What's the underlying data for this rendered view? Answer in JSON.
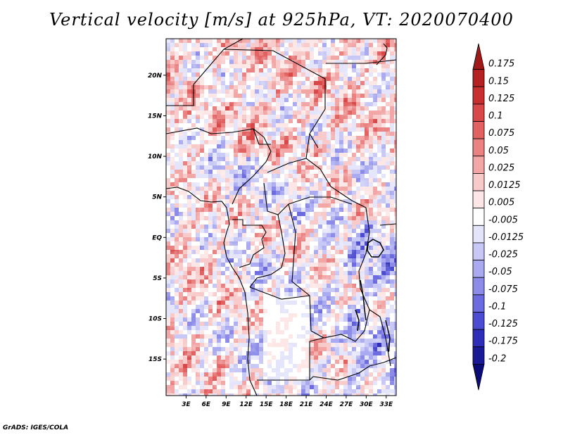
{
  "title": "Vertical velocity [m/s] at 925hPa, VT: 2020070400",
  "footer": "GrADS: IGES/COLA",
  "map": {
    "lon_range": [
      0,
      34.5
    ],
    "lat_range": [
      -19.5,
      24.5
    ],
    "lat_ticks": [
      {
        "value": 20,
        "label": "20N"
      },
      {
        "value": 15,
        "label": "15N"
      },
      {
        "value": 10,
        "label": "10N"
      },
      {
        "value": 5,
        "label": "5N"
      },
      {
        "value": 0,
        "label": "EQ"
      },
      {
        "value": -5,
        "label": "5S"
      },
      {
        "value": -10,
        "label": "10S"
      },
      {
        "value": -15,
        "label": "15S"
      }
    ],
    "lon_ticks": [
      {
        "value": 3,
        "label": "3E"
      },
      {
        "value": 6,
        "label": "6E"
      },
      {
        "value": 9,
        "label": "9E"
      },
      {
        "value": 12,
        "label": "12E"
      },
      {
        "value": 15,
        "label": "15E"
      },
      {
        "value": 18,
        "label": "18E"
      },
      {
        "value": 21,
        "label": "21E"
      },
      {
        "value": 24,
        "label": "24E"
      },
      {
        "value": 27,
        "label": "27E"
      },
      {
        "value": 30,
        "label": "30E"
      },
      {
        "value": 33,
        "label": "33E"
      }
    ]
  },
  "colorbar": {
    "labels": [
      "0.175",
      "0.15",
      "0.125",
      "0.1",
      "0.075",
      "0.05",
      "0.025",
      "0.0125",
      "0.005",
      "-0.005",
      "-0.0125",
      "-0.025",
      "-0.05",
      "-0.075",
      "-0.1",
      "-0.125",
      "-0.175",
      "-0.2"
    ],
    "colors": [
      "#a01a1a",
      "#b52222",
      "#c83030",
      "#d84848",
      "#e26262",
      "#ea8282",
      "#f2a6a6",
      "#f8caca",
      "#fde6e6",
      "#ffffff",
      "#e4e4fb",
      "#c8c8f6",
      "#aaaaf0",
      "#8c8ce8",
      "#6c6ce0",
      "#4c4cd2",
      "#2e2eb8",
      "#1a1a96",
      "#0c0c78"
    ]
  },
  "chart_data": {
    "type": "heatmap",
    "title": "Vertical velocity [m/s] at 925hPa, VT: 2020070400",
    "variable": "Vertical velocity",
    "units": "m/s",
    "level": "925hPa",
    "valid_time": "2020070400",
    "lon_range": [
      0,
      34.5
    ],
    "lat_range": [
      -19.5,
      24.5
    ],
    "x_ticks": [
      "3E",
      "6E",
      "9E",
      "12E",
      "15E",
      "18E",
      "21E",
      "24E",
      "27E",
      "30E",
      "33E"
    ],
    "y_ticks": [
      "20N",
      "15N",
      "10N",
      "5N",
      "EQ",
      "5S",
      "10S",
      "15S"
    ],
    "contour_levels": [
      0.175,
      0.15,
      0.125,
      0.1,
      0.075,
      0.05,
      0.025,
      0.0125,
      0.005,
      -0.005,
      -0.0125,
      -0.025,
      -0.05,
      -0.075,
      -0.1,
      -0.125,
      -0.175,
      -0.2
    ],
    "colorbar_extend": "both"
  }
}
